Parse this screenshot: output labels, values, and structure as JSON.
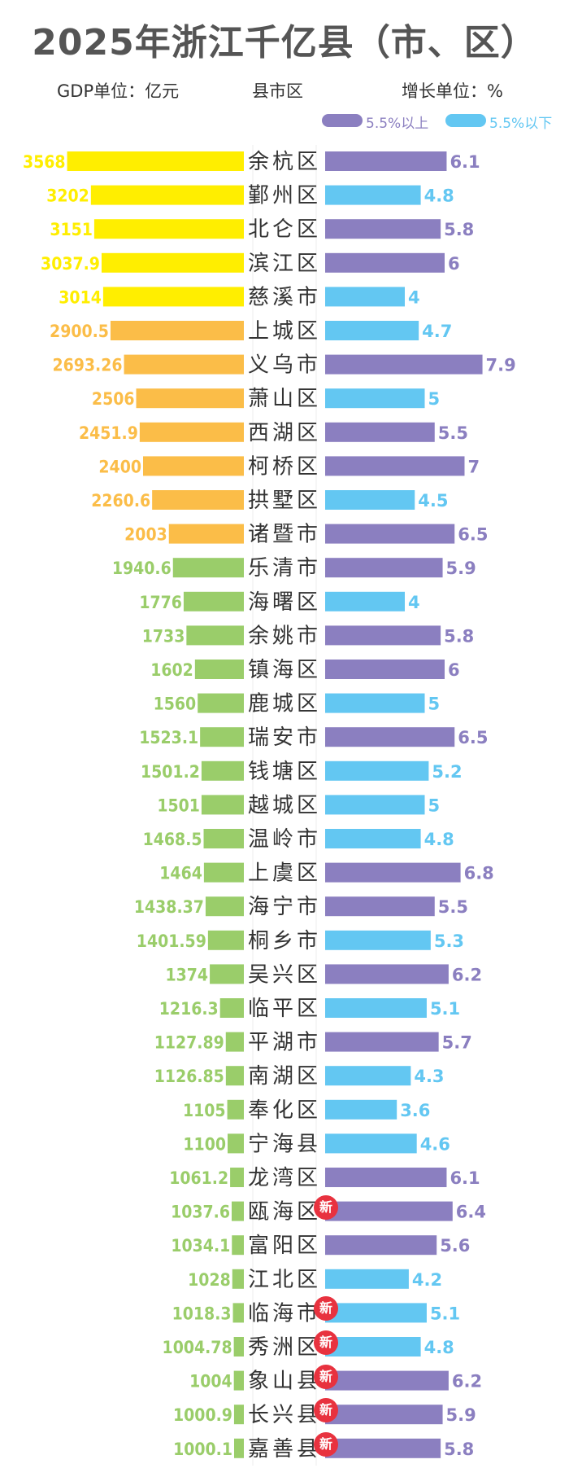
{
  "title": "2025年浙江千亿县（市、区）",
  "units": {
    "gdp": "GDP单位：亿元",
    "region": "县市区",
    "growth": "增长单位：%"
  },
  "legend": [
    {
      "label": "5.5%以上",
      "color": "#8b7fc0"
    },
    {
      "label": "5.5%以下",
      "color": "#63c7f2"
    }
  ],
  "new_badge": "新",
  "colors": {
    "gdp_over_3000": "#ffee00",
    "gdp_2000_3000": "#fbbd48",
    "gdp_1000_2000": "#9acd6a",
    "growth_high": "#8b7fc0",
    "growth_low": "#63c7f2"
  },
  "chart_data": {
    "type": "bar",
    "series": [
      {
        "name": "GDP（亿元）"
      },
      {
        "name": "增长（%）"
      }
    ],
    "categories": [
      "余杭区",
      "鄞州区",
      "北仑区",
      "滨江区",
      "慈溪市",
      "上城区",
      "义乌市",
      "萧山区",
      "西湖区",
      "柯桥区",
      "拱墅区",
      "诸暨市",
      "乐清市",
      "海曙区",
      "余姚市",
      "镇海区",
      "鹿城区",
      "瑞安市",
      "钱塘区",
      "越城区",
      "温岭市",
      "上虞区",
      "海宁市",
      "桐乡市",
      "吴兴区",
      "临平区",
      "平湖市",
      "南湖区",
      "奉化区",
      "宁海县",
      "龙湾区",
      "瓯海区",
      "富阳区",
      "江北区",
      "临海市",
      "秀洲区",
      "象山县",
      "长兴县",
      "嘉善县"
    ],
    "gdp_labels": [
      "3568",
      "3202",
      "3151",
      "3037.9",
      "3014",
      "2900.5",
      "2693.26",
      "2506",
      "2451.9",
      "2400",
      "2260.6",
      "2003",
      "1940.6",
      "1776",
      "1733",
      "1602",
      "1560",
      "1523.1",
      "1501.2",
      "1501",
      "1468.5",
      "1464",
      "1438.37",
      "1401.59",
      "1374",
      "1216.3",
      "1127.89",
      "1126.85",
      "1105",
      "1100",
      "1061.2",
      "1037.6",
      "1034.1",
      "1028",
      "1018.3",
      "1004.78",
      "1004",
      "1000.9",
      "1000.1"
    ],
    "growth_labels": [
      "6.1",
      "4.8",
      "5.8",
      "6",
      "4",
      "4.7",
      "7.9",
      "5",
      "5.5",
      "7",
      "4.5",
      "6.5",
      "5.9",
      "4",
      "5.8",
      "6",
      "5",
      "6.5",
      "5.2",
      "5",
      "4.8",
      "6.8",
      "5.5",
      "5.3",
      "6.2",
      "5.1",
      "5.7",
      "4.3",
      "3.6",
      "4.6",
      "6.1",
      "6.4",
      "5.6",
      "4.2",
      "5.1",
      "4.8",
      "6.2",
      "5.9",
      "5.8"
    ],
    "gdp_tier": [
      "high",
      "high",
      "high",
      "high",
      "high",
      "mid",
      "mid",
      "mid",
      "mid",
      "mid",
      "mid",
      "mid",
      "low",
      "low",
      "low",
      "low",
      "low",
      "low",
      "low",
      "low",
      "low",
      "low",
      "low",
      "low",
      "low",
      "low",
      "low",
      "low",
      "low",
      "low",
      "low",
      "low",
      "low",
      "low",
      "low",
      "low",
      "low",
      "low",
      "low"
    ],
    "growth_group": [
      "high",
      "low",
      "high",
      "high",
      "low",
      "low",
      "high",
      "low",
      "high",
      "high",
      "low",
      "high",
      "high",
      "low",
      "high",
      "high",
      "low",
      "high",
      "low",
      "low",
      "low",
      "high",
      "high",
      "low",
      "high",
      "low",
      "high",
      "low",
      "low",
      "low",
      "high",
      "high",
      "high",
      "low",
      "low",
      "low",
      "high",
      "high",
      "high"
    ],
    "new_entries": [
      "瓯海区",
      "临海市",
      "秀洲区",
      "象山县",
      "长兴县",
      "嘉善县"
    ]
  }
}
